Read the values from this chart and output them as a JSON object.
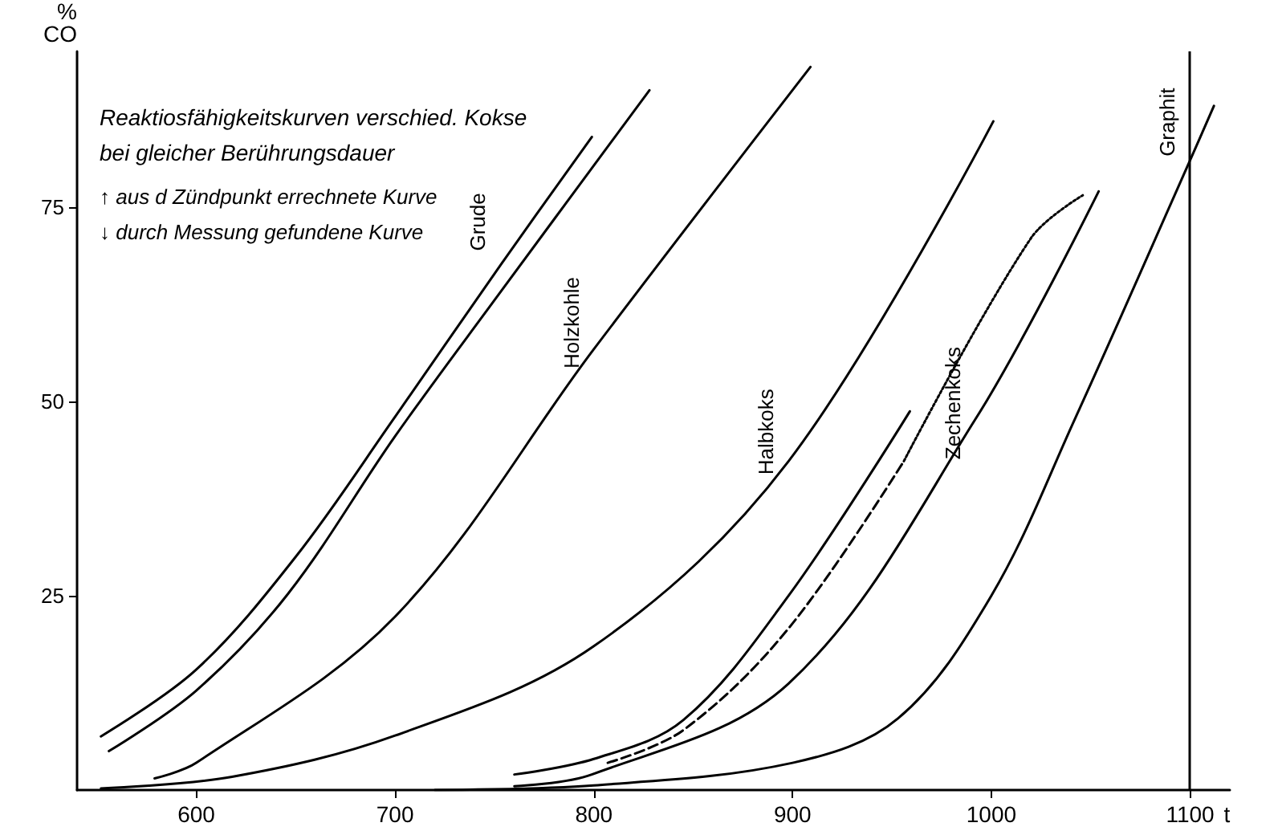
{
  "chart_data": {
    "type": "line",
    "title": "Reaktiosfähigkeitskurven verschied. Kokse",
    "subtitle": "bei gleicher Berührungsdauer",
    "xlabel": "t",
    "ylabel": "%\nCO",
    "annotations": [
      "↑ aus d Zündpunkt errechnete Kurve",
      "↓ durch Messung gefundene Kurve"
    ],
    "xlim": [
      540,
      1120
    ],
    "xticks": [
      600,
      700,
      800,
      900,
      1000,
      1100
    ],
    "ylim": [
      0,
      95
    ],
    "yticks": [
      25,
      50,
      75
    ],
    "grid": false,
    "legend": false,
    "marker": "none",
    "line_style": "solid",
    "ref_lines": [
      {
        "axis": "x",
        "value": 1100,
        "color": "#000000"
      }
    ],
    "series": [
      {
        "name": "Grude",
        "color": "#000000",
        "x": [
          552,
          600,
          650,
          700,
          753,
          799
        ],
        "values": [
          6.9,
          15.5,
          30,
          48,
          67.5,
          84
        ]
      },
      {
        "color": "#000000",
        "x": [
          556,
          600,
          646,
          700,
          750,
          828
        ],
        "values": [
          5,
          12.8,
          25.2,
          45.5,
          63,
          90
        ]
      },
      {
        "name": "Holzkohle",
        "color": "#000000",
        "x": [
          579,
          600,
          700,
          800,
          909
        ],
        "values": [
          1.5,
          3.5,
          22.3,
          56.7,
          93
        ]
      },
      {
        "name": "Halbkoks",
        "color": "#000000",
        "x": [
          552,
          618,
          700,
          800,
          898,
          1001
        ],
        "values": [
          0.2,
          1.7,
          7,
          18.5,
          42.3,
          86
        ]
      },
      {
        "color": "#000000",
        "x": [
          760,
          800,
          845,
          898,
          959
        ],
        "values": [
          2,
          4,
          9,
          25,
          48.7
        ]
      },
      {
        "color": "#000000",
        "line_style": "dashed",
        "x": [
          807,
          845,
          898,
          956
        ],
        "values": [
          3.5,
          7.7,
          20.8,
          42.3
        ]
      },
      {
        "color": "#000000",
        "line_style": "dotted",
        "x": [
          956,
          1020,
          1046
        ],
        "values": [
          42.3,
          71,
          76.5
        ]
      },
      {
        "name": "Zechenkoks",
        "color": "#000000",
        "x": [
          760,
          799,
          898,
          992,
          1054
        ],
        "values": [
          0.5,
          2,
          13.7,
          47.7,
          77
        ]
      },
      {
        "name": "Graphit",
        "color": "#000000",
        "x": [
          720,
          800,
          900,
          953,
          1000,
          1042,
          1100,
          1112
        ],
        "values": [
          0,
          0.6,
          3.5,
          9.2,
          25,
          47.7,
          81,
          88
        ]
      }
    ]
  }
}
